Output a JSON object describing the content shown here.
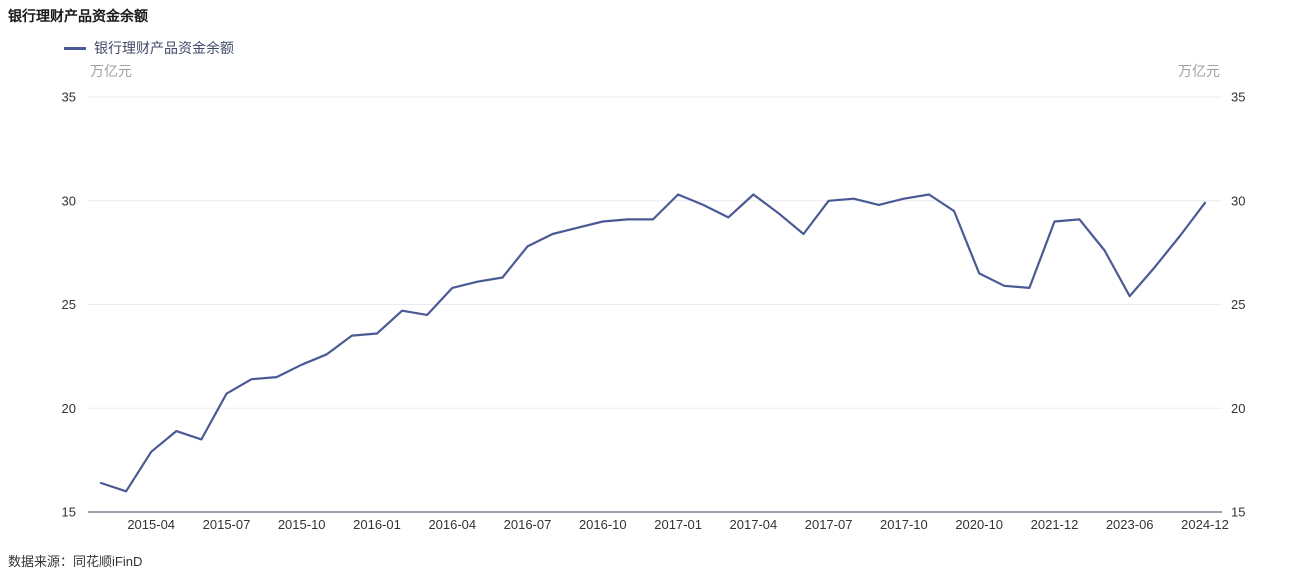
{
  "title": "银行理财产品资金余额",
  "legend": {
    "label": "银行理财产品资金余额"
  },
  "y_axis": {
    "unit": "万亿元"
  },
  "source": "数据来源：同花顺iFinD",
  "colors": {
    "line": "#4b5a94",
    "grid": "#e9ebf3",
    "axis": "#39455e",
    "tick_label": "#333333",
    "unit_label": "#a0a0a5"
  },
  "chart_data": {
    "type": "line",
    "title": "银行理财产品资金余额",
    "ylabel": "万亿元",
    "legend_position": "top-left",
    "grid": true,
    "ylim": [
      15,
      35
    ],
    "y_ticks": [
      15,
      20,
      25,
      30,
      35
    ],
    "series_name": "银行理财产品资金余额",
    "x_tick_labels": [
      "2015-04",
      "2015-07",
      "2015-10",
      "2016-01",
      "2016-04",
      "2016-07",
      "2016-10",
      "2017-01",
      "2017-04",
      "2017-07",
      "2017-10",
      "2020-10",
      "2021-12",
      "2023-06",
      "2024-12"
    ],
    "x_tick_indices": [
      2,
      5,
      8,
      11,
      14,
      17,
      20,
      23,
      26,
      29,
      32,
      35,
      38,
      41,
      44
    ],
    "values": [
      16.4,
      16.0,
      17.9,
      18.9,
      18.5,
      20.7,
      21.4,
      21.5,
      22.1,
      22.6,
      23.5,
      23.6,
      24.7,
      24.5,
      25.8,
      26.1,
      26.3,
      27.8,
      28.4,
      28.7,
      29.0,
      29.1,
      29.1,
      30.3,
      29.8,
      29.2,
      30.3,
      29.4,
      28.4,
      30.0,
      30.1,
      29.8,
      30.1,
      30.3,
      29.5,
      26.5,
      25.9,
      25.8,
      29.0,
      29.1,
      27.6,
      25.4,
      26.8,
      28.3,
      29.9
    ]
  }
}
